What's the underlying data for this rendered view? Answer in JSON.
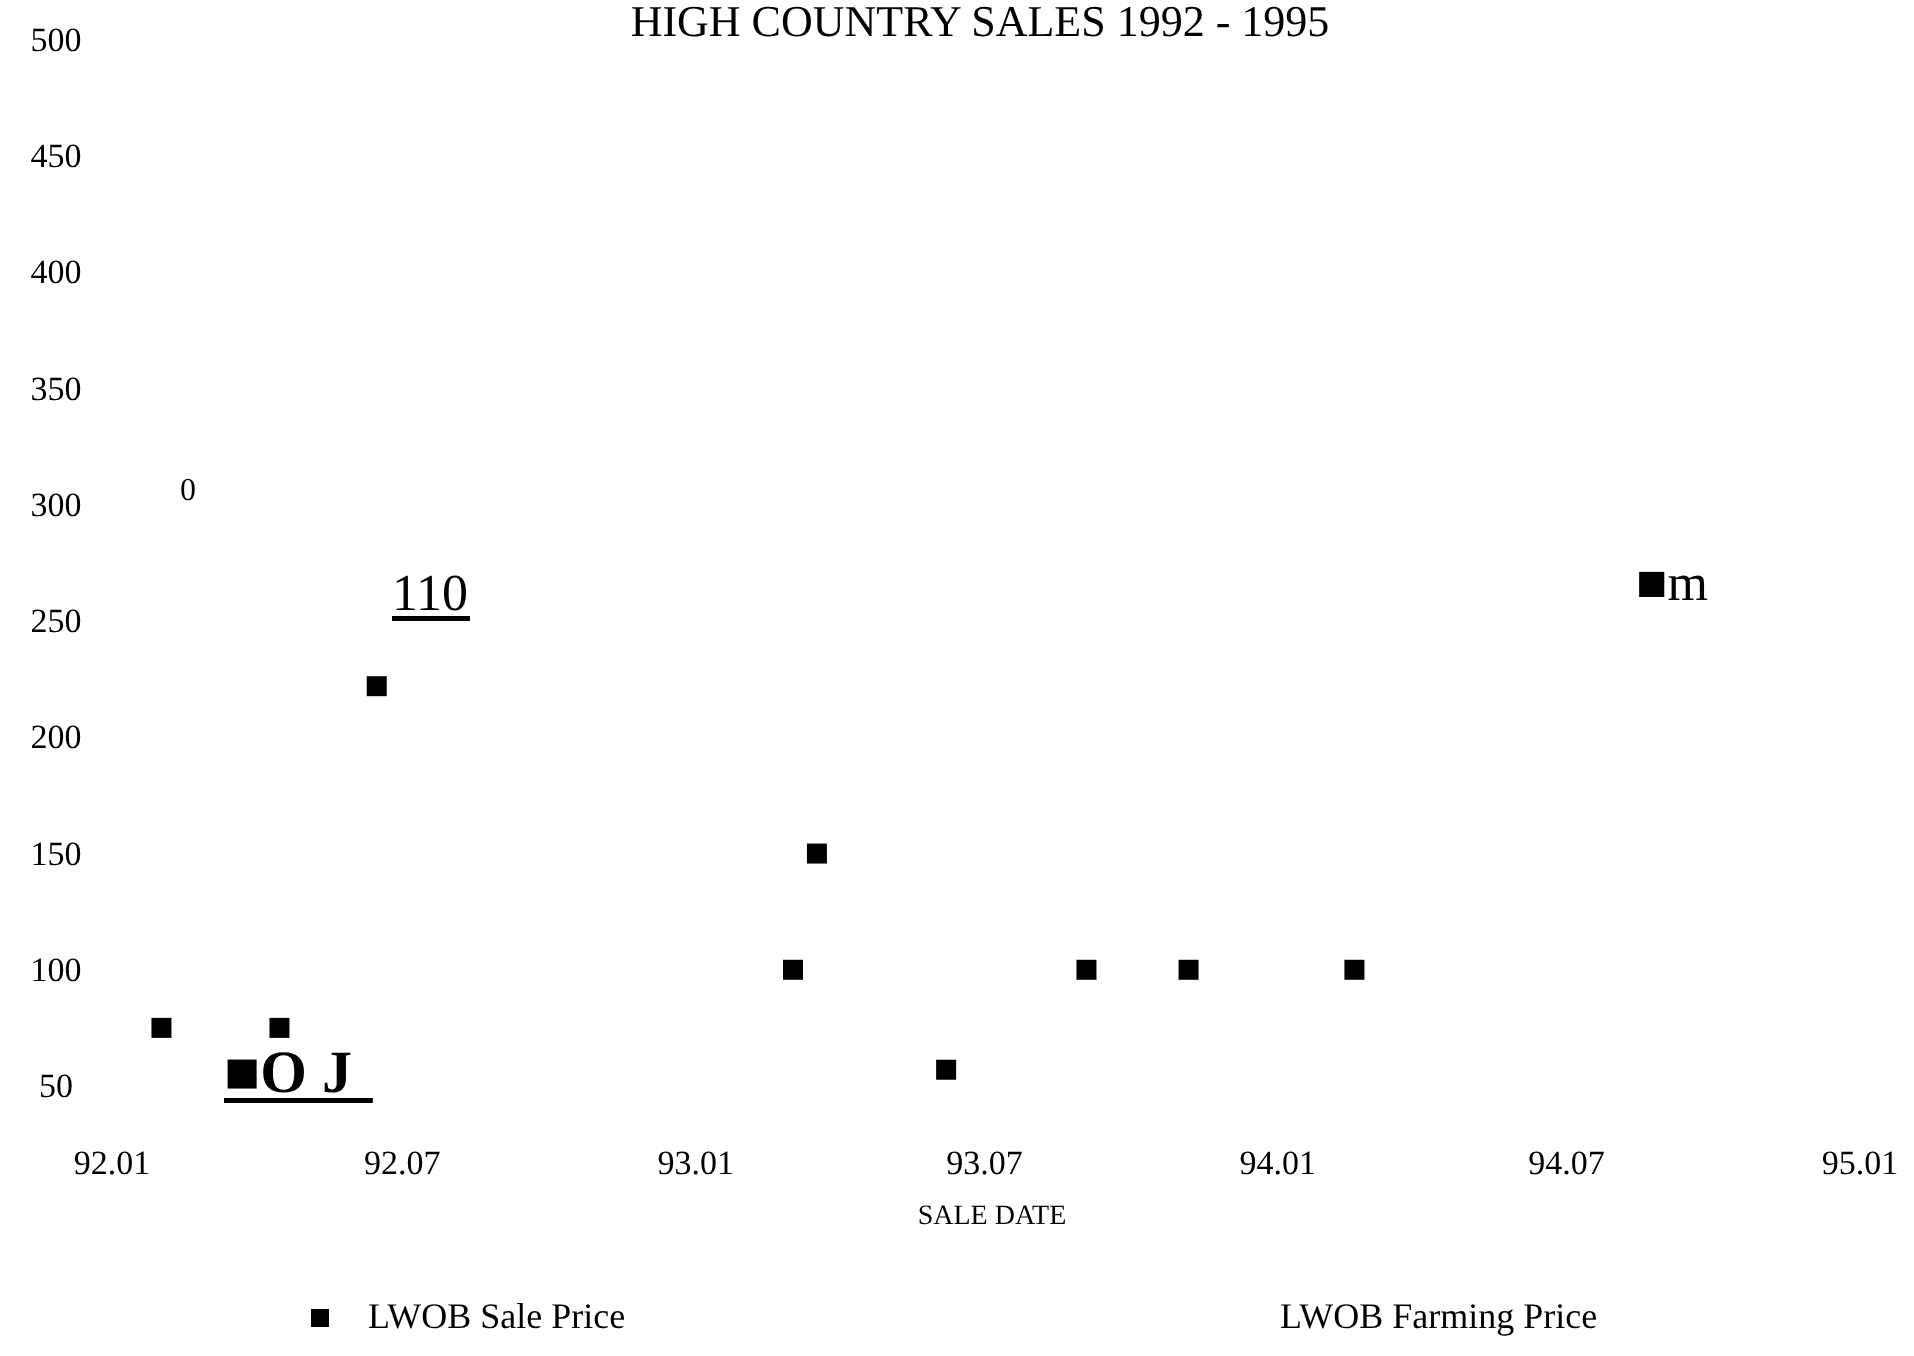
{
  "chart_data": {
    "type": "scatter",
    "title": "HIGH COUNTRY SALES 1992 - 1995",
    "xlabel": "SALE DATE",
    "xlim": [
      "1992-01-01",
      "1995-01-01"
    ],
    "xticks": [
      {
        "value": "1992-01-01",
        "label": "92.01"
      },
      {
        "value": "1992-07-01",
        "label": "92.07"
      },
      {
        "value": "1993-01-01",
        "label": "93.01"
      },
      {
        "value": "1993-07-01",
        "label": "93.07"
      },
      {
        "value": "1994-01-01",
        "label": "94.01"
      },
      {
        "value": "1994-07-01",
        "label": "94.07"
      },
      {
        "value": "1995-01-01",
        "label": "95.01"
      }
    ],
    "ylim": [
      50,
      500
    ],
    "yticks": [
      50,
      100,
      150,
      200,
      250,
      300,
      350,
      400,
      450,
      500
    ],
    "grid": false,
    "legend": "bottom",
    "marker": "square",
    "series": [
      {
        "name": "LWOB Sale Price",
        "color": "#000000",
        "x": [
          "1992-02-01",
          "1992-04-15",
          "1992-06-15",
          "1993-03-03",
          "1993-03-18",
          "1993-06-07",
          "1993-09-03",
          "1993-11-06",
          "1994-02-18"
        ],
        "values": [
          75,
          75,
          222,
          100,
          150,
          57,
          100,
          100,
          100
        ]
      }
    ],
    "annotations": [
      "0",
      "110",
      "■O J",
      "■m",
      "LWOB Farming Price"
    ]
  }
}
